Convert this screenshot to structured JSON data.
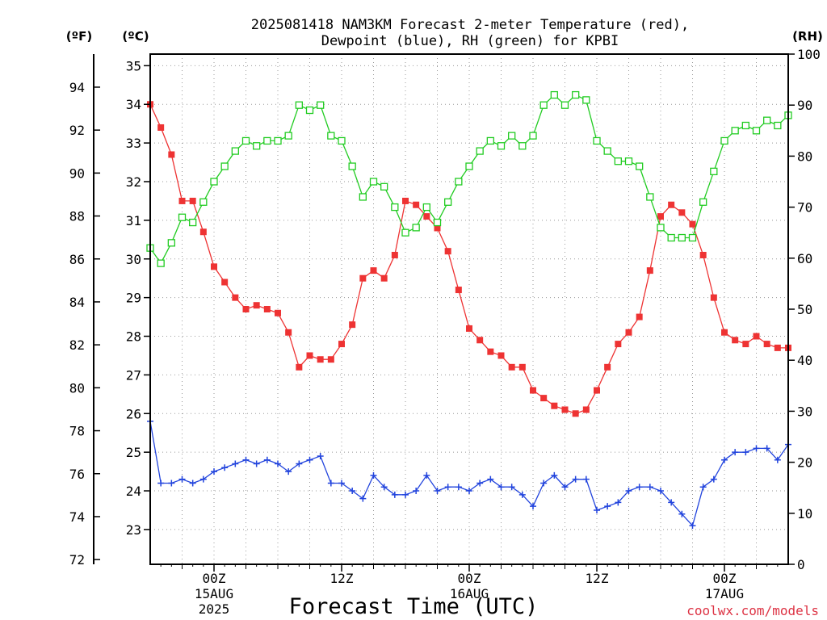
{
  "title_line1": "2025081418 NAM3KM Forecast 2-meter Temperature (red),",
  "title_line2": "Dewpoint (blue), RH (green) for KPBI",
  "unit_f": "(ºF)",
  "unit_c": "(ºC)",
  "unit_rh": "(RH)",
  "xlabel": "Forecast Time (UTC)",
  "credit": "coolwx.com/models",
  "colors": {
    "temperature": "#ee3333",
    "dewpoint": "#2244dd",
    "rh": "#22cc22",
    "grid": "#999999"
  },
  "chart_data": {
    "type": "line",
    "x_units": "forecast hour (from 2025081418)",
    "x_range": [
      0,
      60
    ],
    "x_ticks": [
      {
        "x": 6,
        "label": "00Z",
        "sub1": "15AUG",
        "sub2": "2025"
      },
      {
        "x": 18,
        "label": "12Z",
        "sub1": "",
        "sub2": ""
      },
      {
        "x": 30,
        "label": "00Z",
        "sub1": "16AUG",
        "sub2": ""
      },
      {
        "x": 42,
        "label": "12Z",
        "sub1": "",
        "sub2": ""
      },
      {
        "x": 54,
        "label": "00Z",
        "sub1": "17AUG",
        "sub2": ""
      }
    ],
    "y_celsius": {
      "range": [
        22.1,
        35.3
      ],
      "ticks": [
        23,
        24,
        25,
        26,
        27,
        28,
        29,
        30,
        31,
        32,
        33,
        34,
        35
      ]
    },
    "y_fahrenheit": {
      "ticks": [
        72,
        74,
        76,
        78,
        80,
        82,
        84,
        86,
        88,
        90,
        92,
        94
      ]
    },
    "y_rh": {
      "range": [
        0,
        100
      ],
      "ticks": [
        0,
        10,
        20,
        30,
        40,
        50,
        60,
        70,
        80,
        90,
        100
      ]
    },
    "grid": true,
    "series": [
      {
        "name": "2-meter Temperature",
        "axis": "C",
        "marker": "filled-square",
        "values": [
          34.0,
          33.4,
          32.7,
          31.5,
          31.5,
          30.7,
          29.8,
          29.4,
          29.0,
          28.7,
          28.8,
          28.7,
          28.6,
          28.1,
          27.2,
          27.5,
          27.4,
          27.4,
          27.8,
          28.3,
          29.5,
          29.7,
          29.5,
          30.1,
          31.5,
          31.4,
          31.1,
          30.8,
          30.2,
          29.2,
          28.2,
          27.9,
          27.6,
          27.5,
          27.2,
          27.2,
          26.6,
          26.4,
          26.2,
          26.1,
          26.0,
          26.1,
          26.6,
          27.2,
          27.8,
          28.1,
          28.5,
          29.7,
          31.1,
          31.4,
          31.2,
          30.9,
          30.1,
          29.0,
          28.1,
          27.9,
          27.8,
          28.0,
          27.8,
          27.7,
          27.7
        ]
      },
      {
        "name": "Dewpoint",
        "axis": "C",
        "marker": "plus",
        "values": [
          25.8,
          24.2,
          24.2,
          24.3,
          24.2,
          24.3,
          24.5,
          24.6,
          24.7,
          24.8,
          24.7,
          24.8,
          24.7,
          24.5,
          24.7,
          24.8,
          24.9,
          24.2,
          24.2,
          24.0,
          23.8,
          24.4,
          24.1,
          23.9,
          23.9,
          24.0,
          24.4,
          24.0,
          24.1,
          24.1,
          24.0,
          24.2,
          24.3,
          24.1,
          24.1,
          23.9,
          23.6,
          24.2,
          24.4,
          24.1,
          24.3,
          24.3,
          23.5,
          23.6,
          23.7,
          24.0,
          24.1,
          24.1,
          24.0,
          23.7,
          23.4,
          23.1,
          24.1,
          24.3,
          24.8,
          25.0,
          25.0,
          25.1,
          25.1,
          24.8,
          25.2
        ]
      },
      {
        "name": "RH",
        "axis": "RH",
        "marker": "open-square",
        "values": [
          62,
          59,
          63,
          68,
          67,
          71,
          75,
          78,
          81,
          83,
          82,
          83,
          83,
          84,
          90,
          89,
          90,
          84,
          83,
          78,
          72,
          75,
          74,
          70,
          65,
          66,
          70,
          67,
          71,
          75,
          78,
          81,
          83,
          82,
          84,
          82,
          84,
          90,
          92,
          90,
          92,
          91,
          83,
          81,
          79,
          79,
          78,
          72,
          66,
          64,
          64,
          64,
          71,
          77,
          83,
          85,
          86,
          85,
          87,
          86,
          88
        ]
      }
    ]
  }
}
